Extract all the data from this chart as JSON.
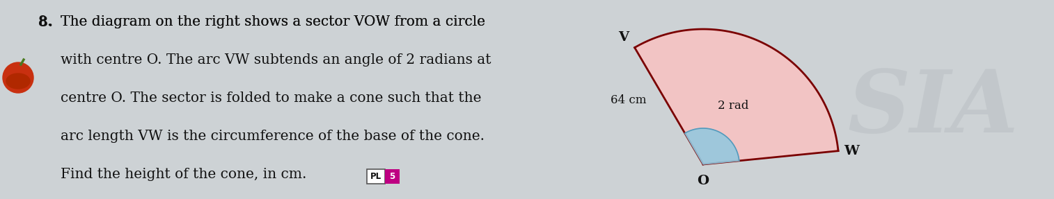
{
  "question_number": "8.",
  "text_lines": [
    "The diagram on the right shows a sector VOW from a circle",
    "with centre O. The arc VW subtends an angle of 2 radians at",
    "centre O. The sector is folded to make a cone such that the",
    "arc length VW is the circumference of the base of the cone.",
    "Find the height of the cone, in cm."
  ],
  "pl_label": "PL",
  "pl_number": "5",
  "pl_box_color": "#be0082",
  "pl_text_color": "#ffffff",
  "bg_color": "#cdd2d5",
  "sector_fill": "#f2c4c4",
  "sector_stroke": "#7a0000",
  "angle_fill": "#90c8e0",
  "label_64cm": "64 cm",
  "label_2rad": "2 rad",
  "label_V": "V",
  "label_W": "W",
  "label_O": "O",
  "watermark": "SIA",
  "font_size_main": 14.5
}
